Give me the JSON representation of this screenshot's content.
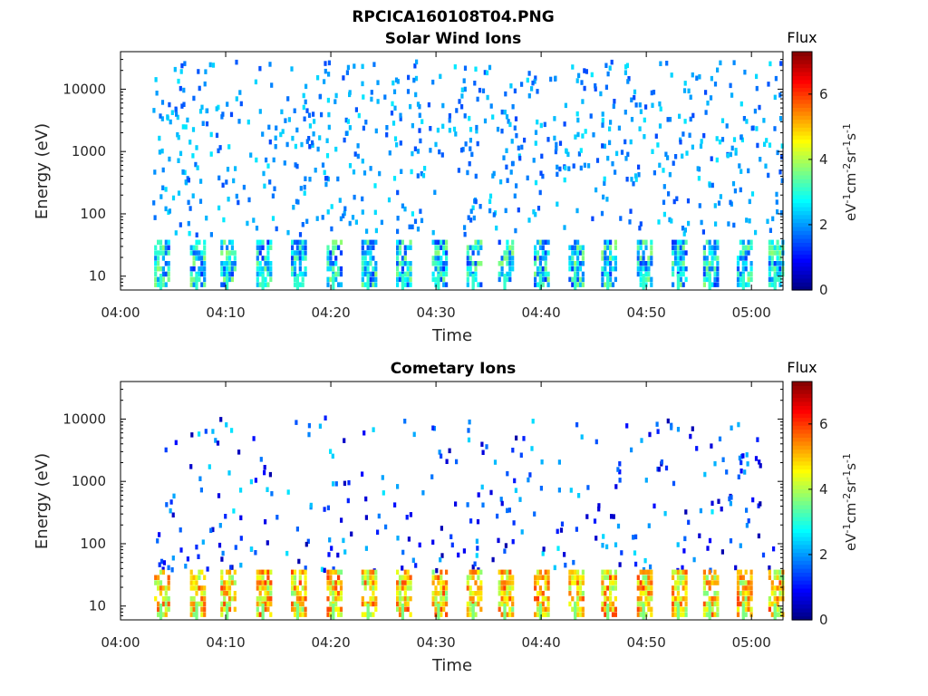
{
  "figure_title": "RPCICA160108T04.PNG",
  "chart_data": [
    {
      "type": "heatmap",
      "title": "Solar Wind Ions",
      "xlabel": "Time",
      "ylabel": "Energy (eV)",
      "x_ticks": [
        "04:00",
        "04:10",
        "04:20",
        "04:30",
        "04:40",
        "04:50",
        "05:00"
      ],
      "xlim_minutes": [
        0,
        63
      ],
      "y_ticks": [
        10,
        100,
        1000,
        10000
      ],
      "y_tick_labels": [
        "10",
        "100",
        "1000",
        "10000"
      ],
      "ylim": [
        6,
        40000
      ],
      "y_scale": "log",
      "colorbar": {
        "title": "Flux",
        "label": "eV-1cm-2sr-1s-1",
        "ticks": [
          0,
          2,
          4,
          6
        ],
        "range": [
          0,
          7.3
        ],
        "colormap": "jet"
      },
      "low_energy_bursts": {
        "start_minutes": [
          3.2,
          6.6,
          9.5,
          12.9,
          16.2,
          19.6,
          22.9,
          26.2,
          29.6,
          32.9,
          35.9,
          39.3,
          42.6,
          45.7,
          49.1,
          52.4,
          55.4,
          58.6,
          61.6
        ],
        "energy_range_eV": [
          8,
          40
        ],
        "typical_flux": 2.5
      },
      "background_flux_range": [
        1.4,
        2.6
      ],
      "grid": false
    },
    {
      "type": "heatmap",
      "title": "Cometary Ions",
      "xlabel": "Time",
      "ylabel": "Energy (eV)",
      "x_ticks": [
        "04:00",
        "04:10",
        "04:20",
        "04:30",
        "04:40",
        "04:50",
        "05:00"
      ],
      "xlim_minutes": [
        0,
        63
      ],
      "y_ticks": [
        10,
        100,
        1000,
        10000
      ],
      "y_tick_labels": [
        "10",
        "100",
        "1000",
        "10000"
      ],
      "ylim": [
        6,
        40000
      ],
      "y_scale": "log",
      "colorbar": {
        "title": "Flux",
        "label": "eV-1cm-2sr-1s-1",
        "ticks": [
          0,
          2,
          4,
          6
        ],
        "range": [
          0,
          7.3
        ],
        "colormap": "jet"
      },
      "low_energy_bursts": {
        "start_minutes": [
          3.2,
          6.6,
          9.5,
          12.9,
          16.2,
          19.6,
          22.9,
          26.2,
          29.6,
          32.9,
          35.9,
          39.3,
          42.6,
          45.7,
          49.1,
          52.4,
          55.4,
          58.6,
          61.6
        ],
        "energy_range_eV": [
          8,
          40
        ],
        "typical_flux": 4.8
      },
      "background_flux_range": [
        0.3,
        2.6
      ],
      "grid": false
    }
  ]
}
